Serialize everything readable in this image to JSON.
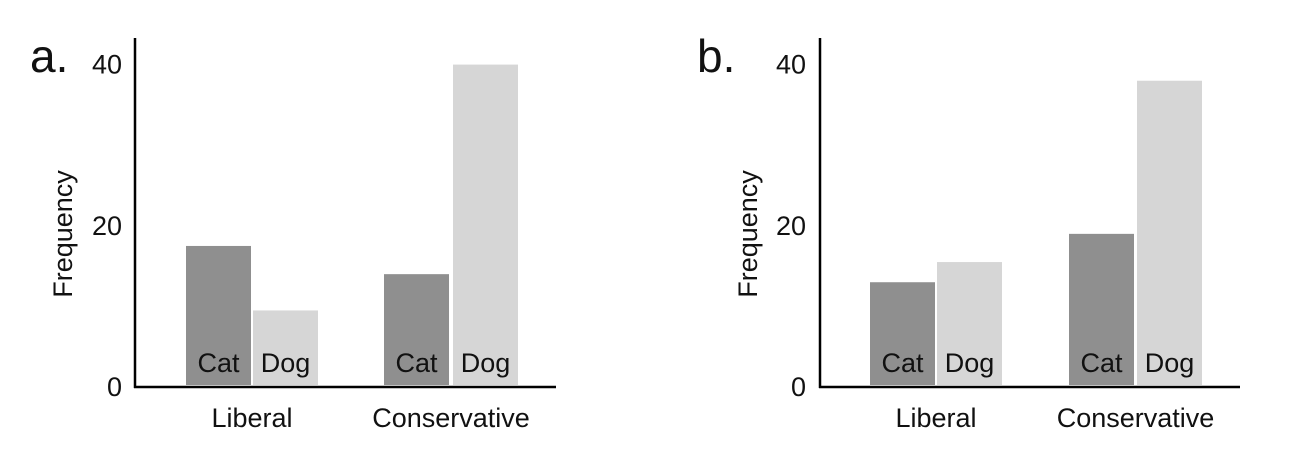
{
  "chart_data": [
    {
      "type": "bar",
      "panel_label": "a.",
      "ylabel": "Frequency",
      "ylim": [
        0,
        40
      ],
      "yticks": [
        0,
        20,
        40
      ],
      "grid": false,
      "categories": [
        "Liberal",
        "Conservative"
      ],
      "series": [
        {
          "name": "Cat",
          "color": "#8f8f8f",
          "values": [
            17.5,
            14
          ]
        },
        {
          "name": "Dog",
          "color": "#d6d6d6",
          "values": [
            9.5,
            40
          ]
        }
      ]
    },
    {
      "type": "bar",
      "panel_label": "b.",
      "ylabel": "Frequency",
      "ylim": [
        0,
        40
      ],
      "yticks": [
        0,
        20,
        40
      ],
      "grid": false,
      "categories": [
        "Liberal",
        "Conservative"
      ],
      "series": [
        {
          "name": "Cat",
          "color": "#8f8f8f",
          "values": [
            13,
            19
          ]
        },
        {
          "name": "Dog",
          "color": "#d6d6d6",
          "values": [
            15.5,
            38
          ]
        }
      ]
    }
  ]
}
